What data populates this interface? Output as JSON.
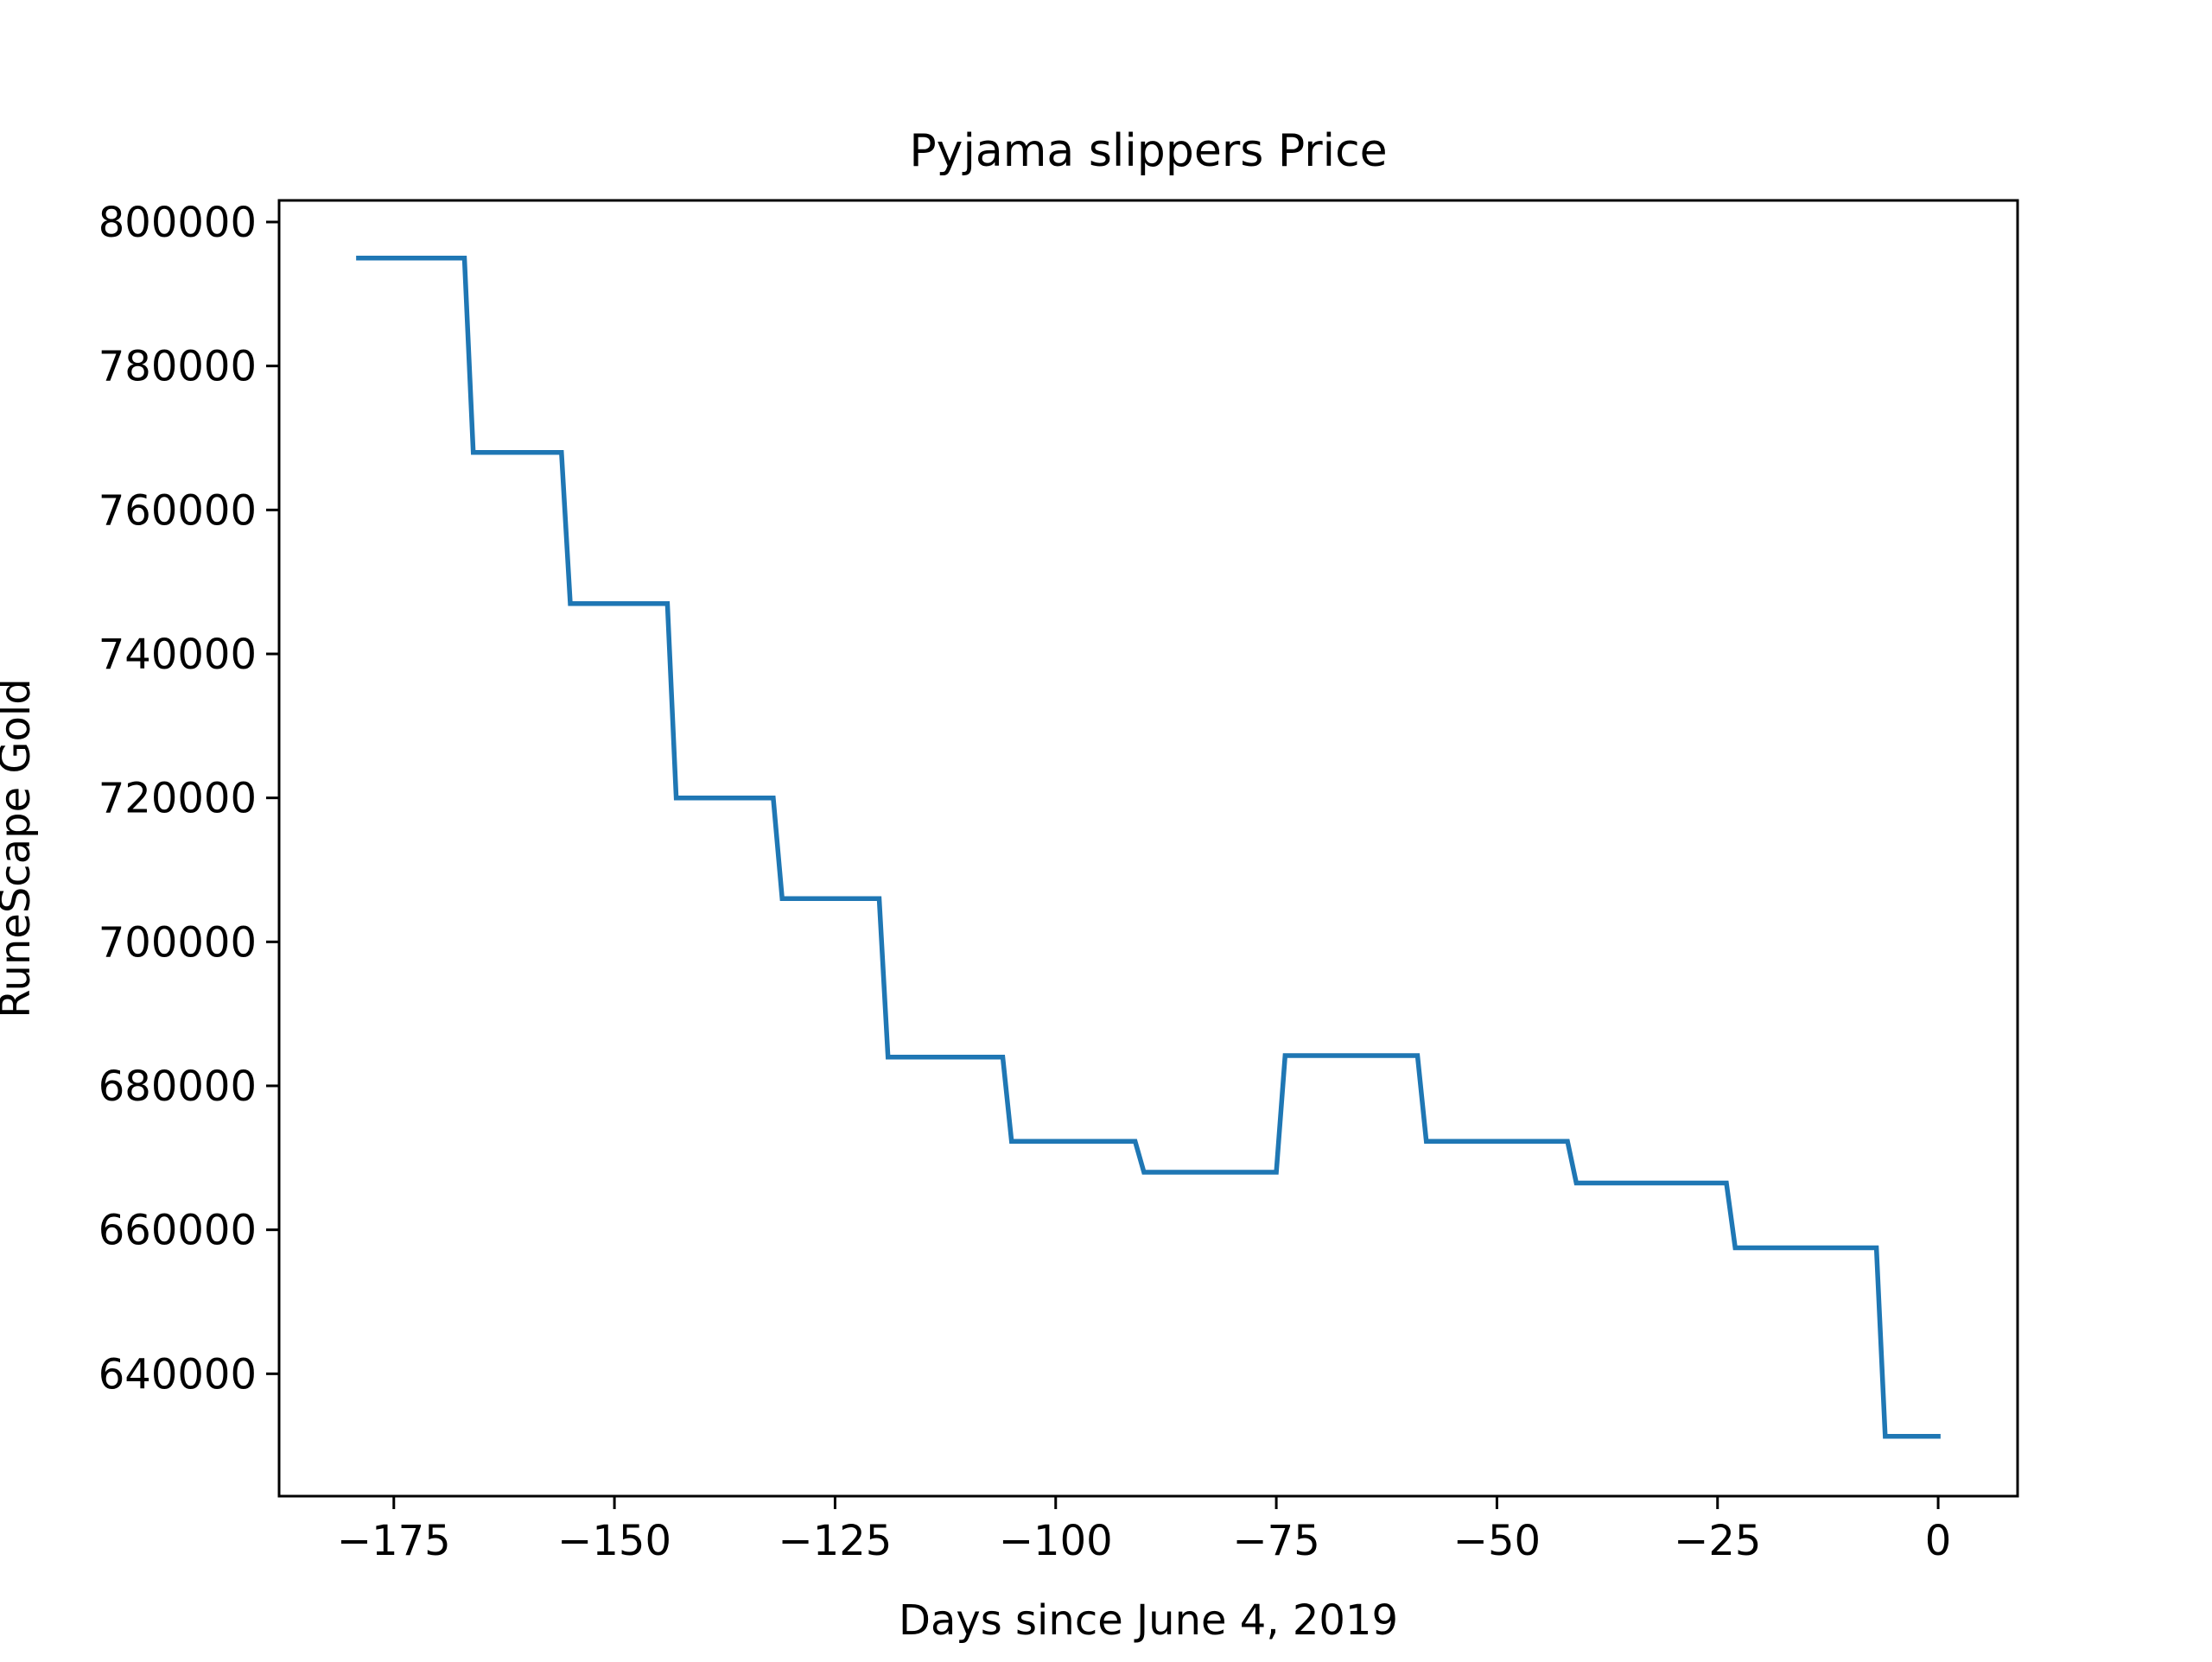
{
  "chart_data": {
    "type": "line",
    "title": "Pyjama slippers Price",
    "xlabel": "Days since June 4, 2019",
    "ylabel": "RuneScape Gold",
    "xlim": [
      -188,
      9
    ],
    "ylim": [
      623000,
      803000
    ],
    "xticks": [
      -175,
      -150,
      -125,
      -100,
      -75,
      -50,
      -25,
      0
    ],
    "xtick_labels": [
      "−175",
      "−150",
      "−125",
      "−100",
      "−75",
      "−50",
      "−25",
      "0"
    ],
    "yticks": [
      640000,
      660000,
      680000,
      700000,
      720000,
      740000,
      760000,
      780000,
      800000
    ],
    "ytick_labels": [
      "640000",
      "660000",
      "680000",
      "700000",
      "720000",
      "740000",
      "760000",
      "780000",
      "800000"
    ],
    "grid": false,
    "legend": false,
    "series_color": "#1f77b4",
    "series": [
      {
        "x": [
          -179,
          -167,
          -166,
          -156,
          -155,
          -144,
          -143,
          -132,
          -131,
          -120,
          -119,
          -106,
          -105,
          -91,
          -90,
          -75,
          -74,
          -59,
          -58,
          -42,
          -41,
          -24,
          -23,
          -7,
          -6,
          0
        ],
        "y": [
          795000,
          795000,
          768000,
          768000,
          747000,
          747000,
          720000,
          720000,
          706000,
          706000,
          684000,
          684000,
          672300,
          672300,
          668000,
          668000,
          684200,
          684200,
          672300,
          672300,
          666500,
          666500,
          657500,
          657500,
          631300,
          631300
        ]
      }
    ]
  }
}
